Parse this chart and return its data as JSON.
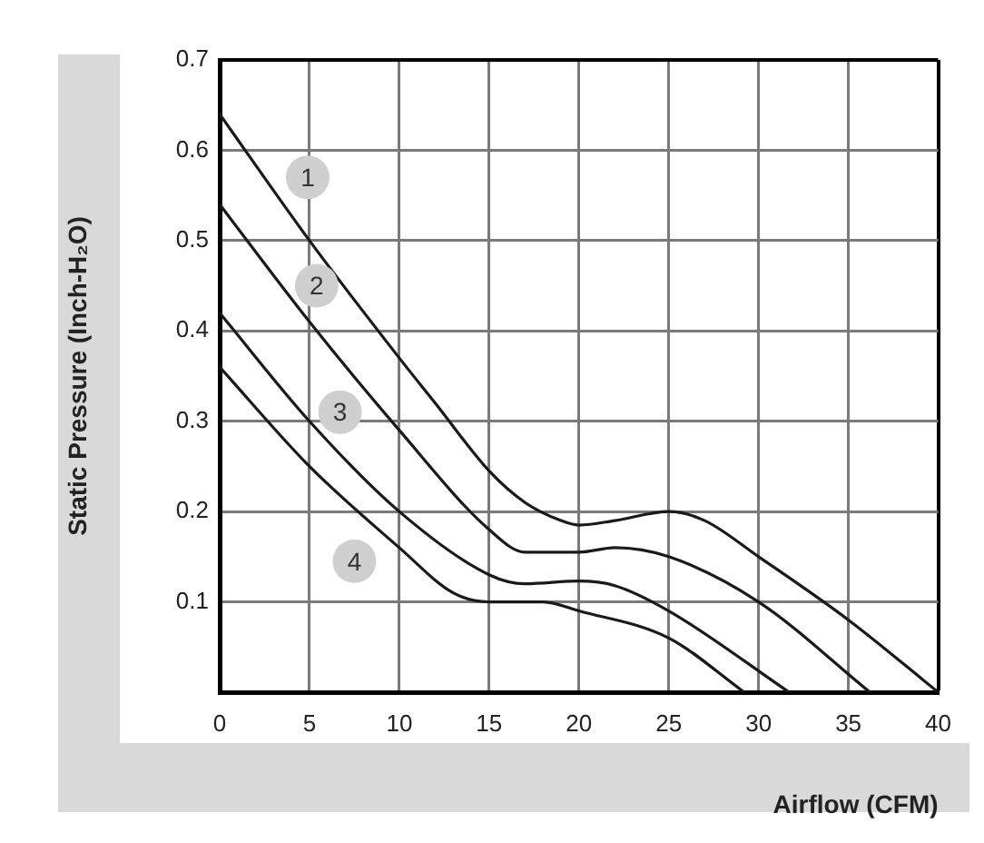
{
  "chart_data": {
    "type": "line",
    "xlabel": "Airflow (CFM)",
    "ylabel": "Static Pressure (Inch-H₂O)",
    "xlim": [
      0,
      40
    ],
    "xticks": [
      0,
      5,
      10,
      15,
      20,
      25,
      30,
      35,
      40
    ],
    "ylim": [
      0,
      0.7
    ],
    "yticks": [
      {
        "value": 0,
        "label": null
      },
      0.1,
      0.2,
      0.3,
      0.4,
      0.5,
      0.6,
      0.7
    ],
    "grid": true,
    "legend": false,
    "marker": "none",
    "line_style": "solid",
    "series": [
      {
        "color": "#1a1a1a",
        "x": [
          0,
          5,
          10,
          12,
          15,
          17,
          19,
          20,
          22,
          25,
          27,
          30,
          35,
          40
        ],
        "values": [
          0.64,
          0.5,
          0.37,
          0.32,
          0.245,
          0.21,
          0.19,
          0.185,
          0.19,
          0.2,
          0.19,
          0.15,
          0.08,
          0
        ]
      },
      {
        "color": "#1a1a1a",
        "x": [
          0,
          5,
          10,
          15,
          17,
          20,
          22,
          25,
          30,
          36.2
        ],
        "values": [
          0.54,
          0.41,
          0.29,
          0.18,
          0.155,
          0.155,
          0.16,
          0.15,
          0.1,
          0
        ]
      },
      {
        "color": "#1a1a1a",
        "x": [
          0,
          5,
          10,
          15,
          17,
          20,
          22,
          25,
          31.7
        ],
        "values": [
          0.42,
          0.3,
          0.2,
          0.13,
          0.12,
          0.123,
          0.118,
          0.09,
          0
        ]
      },
      {
        "color": "#1a1a1a",
        "x": [
          0,
          5,
          10,
          13,
          15,
          18,
          20,
          25,
          29.2
        ],
        "values": [
          0.36,
          0.25,
          0.16,
          0.11,
          0.1,
          0.1,
          0.09,
          0.06,
          0
        ]
      }
    ],
    "annotations": [
      {
        "text": "1",
        "x": 4.9,
        "y": 0.57
      },
      {
        "text": "2",
        "x": 5.4,
        "y": 0.45
      },
      {
        "text": "3",
        "x": 6.7,
        "y": 0.31
      },
      {
        "text": "4",
        "x": 7.5,
        "y": 0.145
      }
    ]
  }
}
